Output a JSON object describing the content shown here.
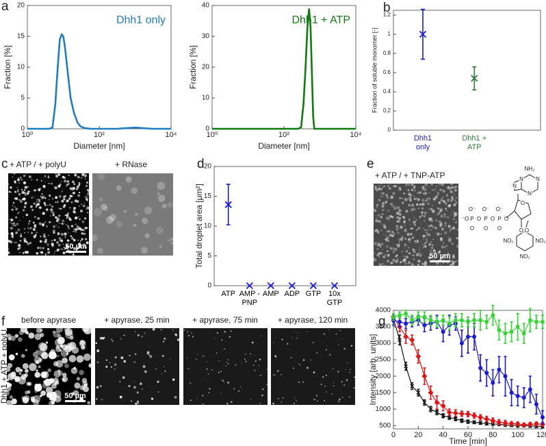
{
  "panel_labels": [
    "a",
    "b",
    "c",
    "d",
    "e",
    "f",
    "g"
  ],
  "images": {
    "c_left": "+ ATP / + polyU",
    "c_right": "+ RNase",
    "scale_bar": "50 µm",
    "e": "+ ATP / + TNP-ATP",
    "f_row_label": "Dhh1 + ATP + polyU",
    "f": [
      "before apyrase",
      "+ apyrase, 25 min",
      "+ apyrase, 75 min",
      "+ apyrase, 120 min"
    ]
  },
  "tnp_atp": {
    "amine": "NH₂",
    "ring_n": [
      "N",
      "N",
      "N",
      "N"
    ],
    "chain_atoms": [
      "⁻O",
      "P",
      "O",
      "P",
      "O",
      "P",
      "O"
    ],
    "chain_oxo": [
      "O",
      "O",
      "O"
    ],
    "chain_minus": [
      "O⁻",
      "O⁻",
      "O⁻"
    ],
    "ribose_o": [
      "O",
      "O",
      "O"
    ],
    "nitro": [
      "NO₂",
      "NO₂",
      "NO₂"
    ]
  },
  "chart_data": [
    {
      "type": "line",
      "annotation": "Dhh1 only",
      "xlabel": "Diameter [nm]",
      "ylabel": "Fraction [%]",
      "xlog": true,
      "x": [
        1,
        2,
        3,
        4,
        5,
        6,
        7,
        8,
        9,
        10,
        11,
        12,
        14,
        16,
        20,
        25,
        30,
        40,
        60,
        100,
        300,
        1000,
        3000,
        10000
      ],
      "series": [
        {
          "color": "#1f7cc0",
          "values": [
            0,
            0,
            0,
            0,
            0.2,
            4,
            10,
            14.5,
            15.3,
            15,
            13.5,
            11.5,
            8,
            5,
            2.5,
            1,
            0.4,
            0.1,
            0,
            0,
            0,
            0.2,
            0,
            0
          ]
        }
      ],
      "xlim": [
        1,
        10000
      ],
      "xticks": [
        {
          "value": 1,
          "label": "10⁰"
        },
        {
          "value": 100,
          "label": "10²"
        },
        {
          "value": 10000,
          "label": "10⁴"
        }
      ],
      "ylim": [
        0,
        20
      ],
      "yticks": [
        0,
        5,
        10,
        15,
        20
      ]
    },
    {
      "type": "line",
      "annotation": "Dhh1 + ATP",
      "xlabel": "Diameter [nm]",
      "ylabel": "Fraction [%]",
      "xlog": true,
      "x": [
        1,
        10,
        100,
        250,
        300,
        350,
        400,
        450,
        500,
        550,
        600,
        650,
        700,
        1000,
        10000
      ],
      "series": [
        {
          "color": "#0f7a0f",
          "values": [
            0,
            0,
            0,
            0,
            0.5,
            8,
            20,
            33,
            39,
            33,
            18,
            4,
            0,
            0,
            0
          ]
        }
      ],
      "xlim": [
        1,
        10000
      ],
      "xticks": [
        {
          "value": 1,
          "label": "10⁰"
        },
        {
          "value": 100,
          "label": "10²"
        },
        {
          "value": 10000,
          "label": "10⁴"
        }
      ],
      "ylim": [
        0,
        40
      ],
      "yticks": [
        0,
        10,
        20,
        30,
        40
      ]
    },
    {
      "type": "errorbar",
      "ylabel": "Fraction of soluble monomer [-]",
      "categories": [
        "Dhh1 only",
        "Dhh1 + ATP"
      ],
      "values": [
        1.0,
        0.54
      ],
      "errors": [
        0.26,
        0.12
      ],
      "colors": [
        "#1a1ad8",
        "#2f7a3a"
      ],
      "ylim": [
        0,
        1.25
      ],
      "yticks": [
        0,
        0.2,
        0.4,
        0.6,
        0.8,
        1,
        1.2
      ]
    },
    {
      "type": "errorbar",
      "ylabel": "Total droplet area [μm²]",
      "categories": [
        "ATP",
        "AMP -PNP",
        "AMP",
        "ADP",
        "GTP",
        "10x GTP"
      ],
      "values": [
        13.6,
        0,
        0,
        0,
        0,
        0
      ],
      "errors": [
        3.4,
        null,
        null,
        null,
        null,
        null
      ],
      "color": "#1a1ad8",
      "ylim": [
        0,
        20
      ],
      "yticks": [
        0,
        5,
        10,
        15,
        20
      ]
    },
    {
      "type": "line",
      "xlabel": "Time [min]",
      "ylabel": "Intensity [arb. units]",
      "x": [
        0,
        5,
        10,
        15,
        20,
        25,
        30,
        35,
        40,
        45,
        50,
        55,
        60,
        65,
        70,
        75,
        80,
        85,
        90,
        95,
        100,
        105,
        110,
        115,
        120
      ],
      "series": [
        {
          "color": "#111111",
          "marker": "x",
          "values": [
            3750,
            3100,
            2300,
            1700,
            1500,
            1200,
            1000,
            900,
            800,
            750,
            700,
            650,
            620,
            600,
            580,
            560,
            550,
            540,
            520,
            510,
            500,
            500,
            490,
            480,
            470
          ],
          "errors": [
            100,
            150,
            120,
            100,
            100,
            80,
            80,
            70,
            60,
            60,
            50,
            50,
            50,
            40,
            40,
            40,
            40,
            40,
            40,
            40,
            40,
            40,
            40,
            40,
            40
          ]
        },
        {
          "color": "#e01414",
          "marker": "d",
          "values": [
            3800,
            3500,
            3200,
            3100,
            2600,
            2000,
            1500,
            1200,
            1100,
            900,
            880,
            860,
            850,
            800,
            750,
            700,
            650,
            600,
            580,
            560,
            550,
            520,
            540,
            550,
            540
          ],
          "errors": [
            100,
            150,
            200,
            150,
            200,
            250,
            200,
            200,
            150,
            100,
            100,
            80,
            80,
            80,
            80,
            80,
            80,
            80,
            80,
            60,
            60,
            60,
            60,
            60,
            60
          ]
        },
        {
          "color": "#1a1ad8",
          "marker": "o",
          "values": [
            3700,
            3650,
            3600,
            3650,
            3700,
            3550,
            3600,
            3650,
            3350,
            3550,
            3600,
            3000,
            3200,
            3200,
            2250,
            2100,
            1800,
            2200,
            2000,
            1500,
            1400,
            1350,
            1600,
            1150,
            750
          ],
          "errors": [
            150,
            150,
            150,
            150,
            150,
            200,
            200,
            200,
            300,
            300,
            200,
            400,
            500,
            400,
            400,
            400,
            400,
            400,
            600,
            400,
            300,
            300,
            400,
            300,
            200
          ]
        },
        {
          "color": "#2ed62e",
          "marker": "s",
          "values": [
            3800,
            3850,
            3900,
            3700,
            3800,
            3800,
            3700,
            3650,
            3700,
            3600,
            3700,
            3700,
            3650,
            3700,
            3700,
            3650,
            3850,
            3400,
            3300,
            3350,
            3500,
            3300,
            3700,
            3650,
            3650
          ],
          "errors": [
            100,
            100,
            100,
            150,
            150,
            150,
            150,
            150,
            150,
            200,
            200,
            200,
            150,
            200,
            300,
            200,
            300,
            300,
            300,
            300,
            400,
            300,
            350,
            200,
            200
          ]
        }
      ],
      "xlim": [
        0,
        120
      ],
      "xticks": [
        0,
        20,
        40,
        60,
        80,
        100,
        120
      ],
      "ylim": [
        400,
        4000
      ],
      "yticks": [
        500,
        1000,
        1500,
        2000,
        2500,
        3000,
        3500,
        4000
      ]
    }
  ]
}
